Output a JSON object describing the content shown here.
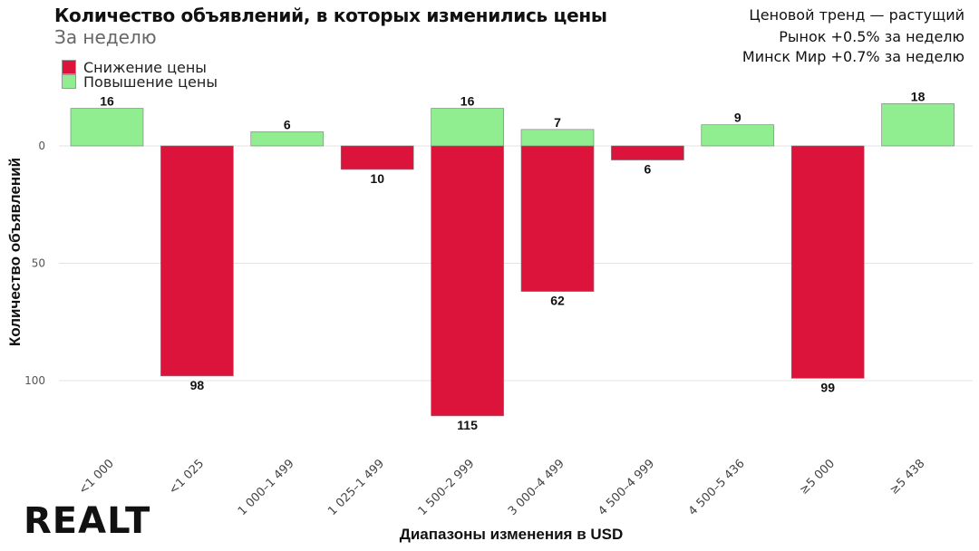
{
  "chart_data": {
    "type": "bar",
    "title": "Количество объявлений, в которых изменились цены",
    "subtitle": "За неделю",
    "xlabel": "Диапазоны изменения в USD",
    "ylabel": "Количество объявлений",
    "categories": [
      "<1 000",
      "<1 025",
      "1 000–1 499",
      "1 025–1 499",
      "1 500–2 999",
      "3 000–4 499",
      "4 500–4 999",
      "4 500–5 436",
      "≥5 000",
      "≥5 438"
    ],
    "series": [
      {
        "name": "Снижение цены",
        "color": "#DC143C",
        "direction": "down",
        "values": [
          null,
          98,
          null,
          10,
          115,
          62,
          6,
          null,
          99,
          null
        ]
      },
      {
        "name": "Повышение цены",
        "color": "#90EE90",
        "direction": "up",
        "values": [
          16,
          null,
          6,
          null,
          16,
          7,
          null,
          9,
          null,
          18
        ]
      }
    ],
    "yticks": [
      0,
      50,
      100
    ],
    "ylim": [
      -18,
      115
    ],
    "y_axis_reversed": true,
    "grid": true,
    "legend_position": "top-left",
    "annotations": [
      "Ценовой тренд — растущий",
      "Рынок +0.5% за неделю",
      "Минск Мир +0.7% за неделю"
    ]
  },
  "logo": "REALT"
}
